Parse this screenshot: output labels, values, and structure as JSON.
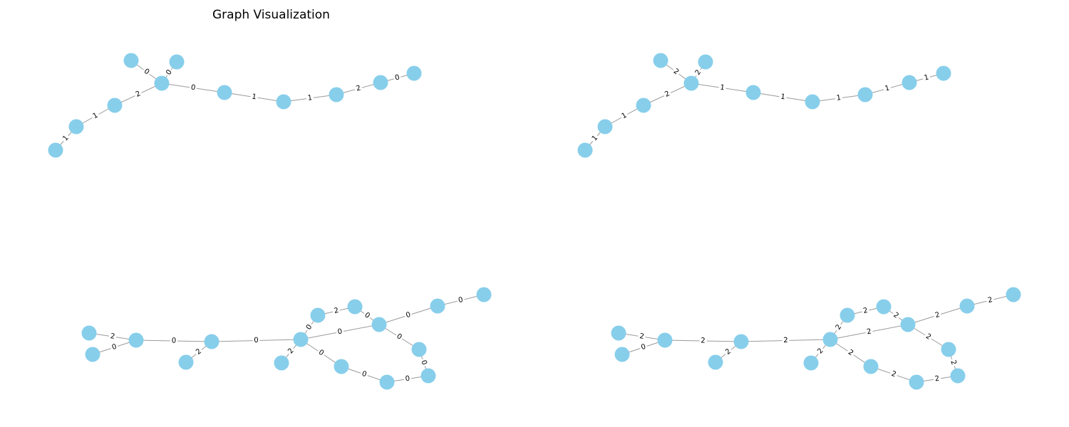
{
  "figure": {
    "title": "Graph Visualization"
  },
  "colors": {
    "node": "#87ceeb",
    "edge": "#9a9a9a",
    "label": "#000000"
  },
  "graphs": [
    {
      "id": "top-left",
      "edge_labels": [
        "0",
        "0",
        "2",
        "1",
        "1",
        "0",
        "1",
        "1",
        "2",
        "0"
      ]
    },
    {
      "id": "top-right",
      "edge_labels": [
        "2",
        "2",
        "2",
        "1",
        "1",
        "1",
        "1",
        "1",
        "1",
        "1"
      ]
    },
    {
      "id": "bottom-left",
      "edge_labels": [
        "2",
        "0",
        "0",
        "2",
        "0",
        "0",
        "2",
        "0",
        "0",
        "0",
        "0",
        "0",
        "0",
        "0",
        "0",
        "0",
        "2"
      ]
    },
    {
      "id": "bottom-right",
      "edge_labels": [
        "2",
        "0",
        "2",
        "2",
        "2",
        "2",
        "2",
        "2",
        "2",
        "2",
        "2",
        "2",
        "2",
        "2",
        "2",
        "2",
        "2"
      ]
    }
  ]
}
